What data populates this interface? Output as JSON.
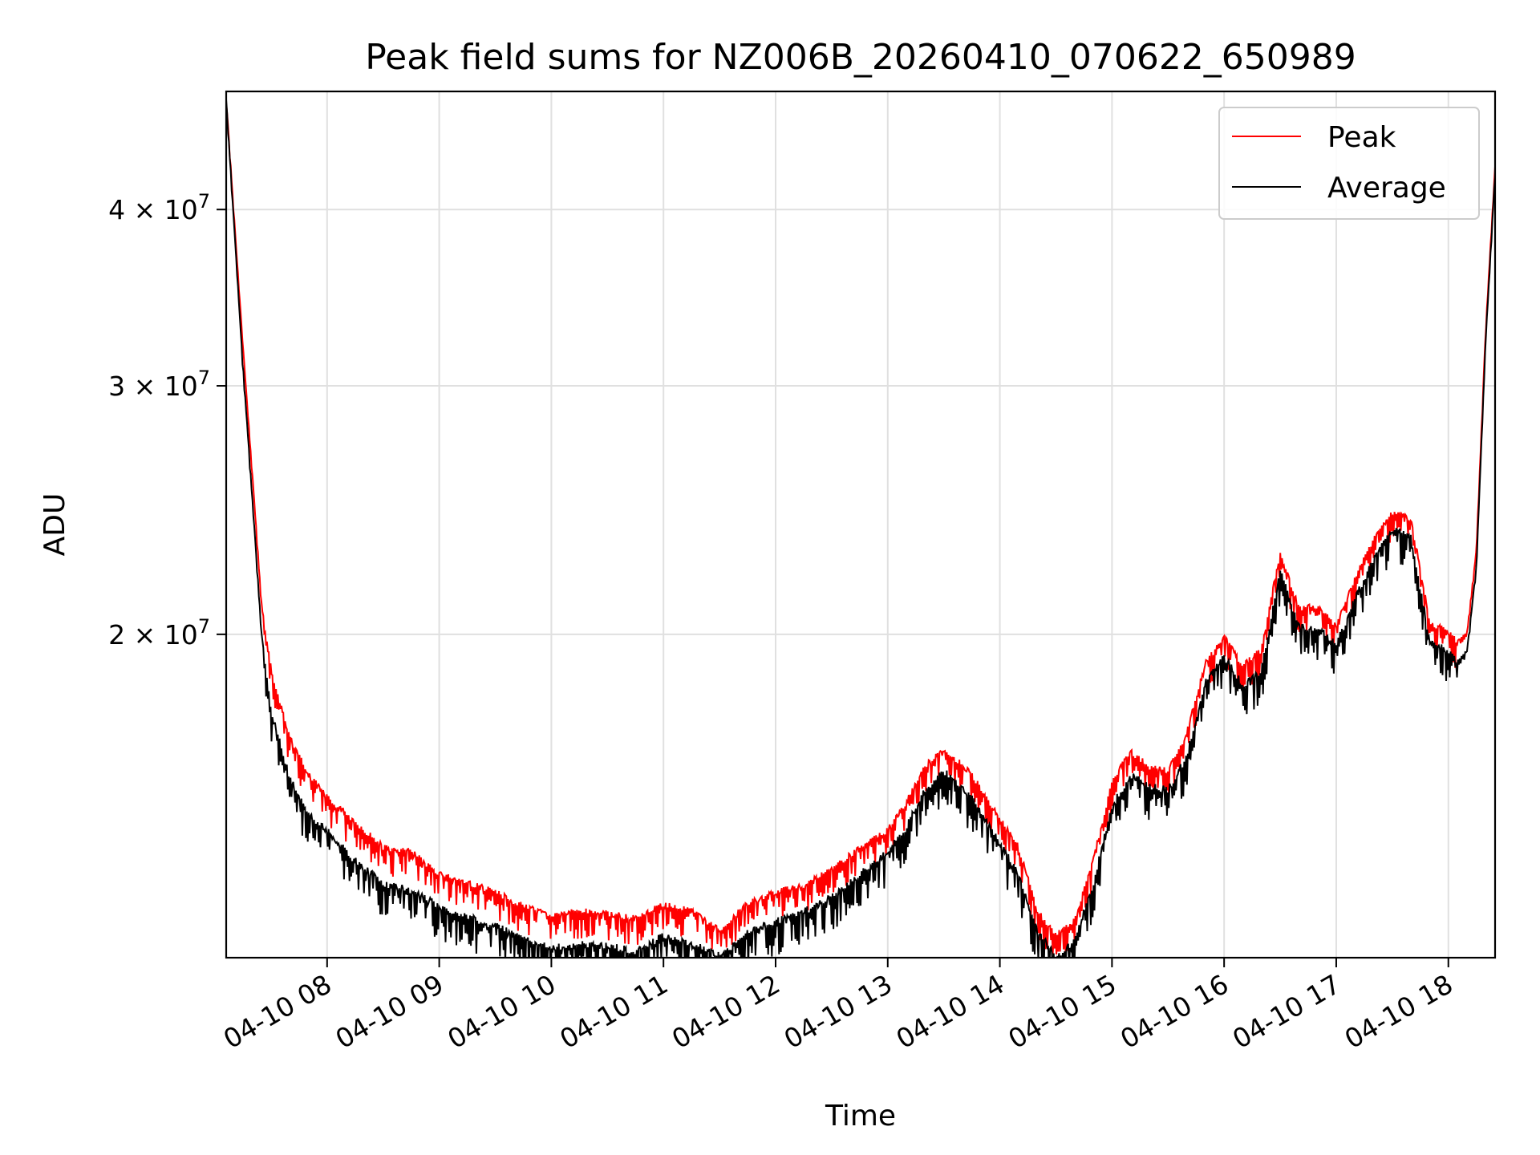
{
  "chart_data": {
    "type": "line",
    "title": "Peak field sums for NZ006B_20260410_070622_650989",
    "xlabel": "Time",
    "ylabel": "ADU",
    "x_axis": {
      "scale": "time",
      "range": [
        "2026-04-10 07:06",
        "2026-04-10 18:25"
      ],
      "ticks": [
        {
          "value": "2026-04-10 08:00",
          "label": "04-10 08"
        },
        {
          "value": "2026-04-10 09:00",
          "label": "04-10 09"
        },
        {
          "value": "2026-04-10 10:00",
          "label": "04-10 10"
        },
        {
          "value": "2026-04-10 11:00",
          "label": "04-10 11"
        },
        {
          "value": "2026-04-10 12:00",
          "label": "04-10 12"
        },
        {
          "value": "2026-04-10 13:00",
          "label": "04-10 13"
        },
        {
          "value": "2026-04-10 14:00",
          "label": "04-10 14"
        },
        {
          "value": "2026-04-10 15:00",
          "label": "04-10 15"
        },
        {
          "value": "2026-04-10 16:00",
          "label": "04-10 16"
        },
        {
          "value": "2026-04-10 17:00",
          "label": "04-10 17"
        },
        {
          "value": "2026-04-10 18:00",
          "label": "04-10 18"
        }
      ]
    },
    "y_axis": {
      "scale": "log",
      "range": [
        11800000,
        48500000
      ],
      "ticks": [
        {
          "value": 20000000,
          "label": "2 × 10⁷",
          "base": "2 × 10",
          "exp": "7"
        },
        {
          "value": 30000000,
          "label": "3 × 10⁷",
          "base": "3 × 10",
          "exp": "7"
        },
        {
          "value": 40000000,
          "label": "4 × 10⁷",
          "base": "4 × 10",
          "exp": "7"
        }
      ]
    },
    "grid": true,
    "legend_position": "top-right",
    "series": [
      {
        "name": "Peak",
        "color": "#ff0000",
        "x": [
          "07:06",
          "07:10",
          "07:15",
          "07:20",
          "07:25",
          "07:30",
          "07:40",
          "07:50",
          "08:00",
          "08:15",
          "08:30",
          "08:45",
          "09:00",
          "09:15",
          "09:30",
          "09:45",
          "10:00",
          "10:15",
          "10:30",
          "10:45",
          "11:00",
          "11:15",
          "11:30",
          "11:45",
          "12:00",
          "12:15",
          "12:30",
          "12:45",
          "13:00",
          "13:10",
          "13:20",
          "13:30",
          "13:45",
          "14:00",
          "14:10",
          "14:20",
          "14:30",
          "14:40",
          "14:50",
          "15:00",
          "15:10",
          "15:20",
          "15:30",
          "15:40",
          "15:50",
          "16:00",
          "16:10",
          "16:20",
          "16:30",
          "16:40",
          "16:50",
          "17:00",
          "17:10",
          "17:20",
          "17:30",
          "17:40",
          "17:50",
          "18:00",
          "18:05",
          "18:10",
          "18:15",
          "18:20",
          "18:25"
        ],
        "y": [
          48000000,
          40000000,
          32000000,
          26000000,
          21000000,
          19000000,
          17000000,
          16000000,
          15400000,
          14800000,
          14200000,
          14100000,
          13600000,
          13400000,
          13200000,
          12900000,
          12700000,
          12800000,
          12750000,
          12650000,
          12950000,
          12800000,
          12400000,
          12950000,
          13200000,
          13350000,
          13700000,
          14200000,
          14600000,
          15300000,
          16200000,
          16700000,
          16000000,
          14900000,
          14200000,
          12800000,
          12300000,
          12600000,
          13900000,
          15800000,
          16600000,
          16200000,
          16100000,
          17100000,
          19200000,
          20000000,
          19100000,
          19600000,
          23000000,
          21000000,
          21000000,
          20400000,
          22000000,
          23500000,
          24500000,
          24300000,
          20500000,
          20200000,
          19800000,
          20100000,
          23000000,
          33000000,
          43000000
        ]
      },
      {
        "name": "Average",
        "color": "#000000",
        "x": [
          "07:06",
          "07:10",
          "07:15",
          "07:20",
          "07:25",
          "07:30",
          "07:40",
          "07:50",
          "08:00",
          "08:15",
          "08:30",
          "08:45",
          "09:00",
          "09:15",
          "09:30",
          "09:45",
          "10:00",
          "10:15",
          "10:30",
          "10:45",
          "11:00",
          "11:15",
          "11:30",
          "11:45",
          "12:00",
          "12:15",
          "12:30",
          "12:45",
          "13:00",
          "13:10",
          "13:20",
          "13:30",
          "13:45",
          "14:00",
          "14:10",
          "14:20",
          "14:30",
          "14:40",
          "14:50",
          "15:00",
          "15:10",
          "15:20",
          "15:30",
          "15:40",
          "15:50",
          "16:00",
          "16:10",
          "16:20",
          "16:30",
          "16:40",
          "16:50",
          "17:00",
          "17:10",
          "17:20",
          "17:30",
          "17:40",
          "17:50",
          "18:00",
          "18:05",
          "18:10",
          "18:15",
          "18:20",
          "18:25"
        ],
        "y": [
          48000000,
          39500000,
          31000000,
          25000000,
          20000000,
          17800000,
          15900000,
          15000000,
          14600000,
          13900000,
          13400000,
          13250000,
          12900000,
          12700000,
          12500000,
          12250000,
          12050000,
          12150000,
          12100000,
          12000000,
          12300000,
          12150000,
          11900000,
          12350000,
          12600000,
          12800000,
          13100000,
          13600000,
          14100000,
          14700000,
          15600000,
          16100000,
          15400000,
          14300000,
          13600000,
          12400000,
          11900000,
          12200000,
          13400000,
          15200000,
          16000000,
          15700000,
          15600000,
          16500000,
          18600000,
          19400000,
          18500000,
          19000000,
          22300000,
          20400000,
          20300000,
          19800000,
          21300000,
          22800000,
          23900000,
          23600000,
          19900000,
          19600000,
          19200000,
          19500000,
          22400000,
          32500000,
          42500000
        ]
      }
    ]
  }
}
